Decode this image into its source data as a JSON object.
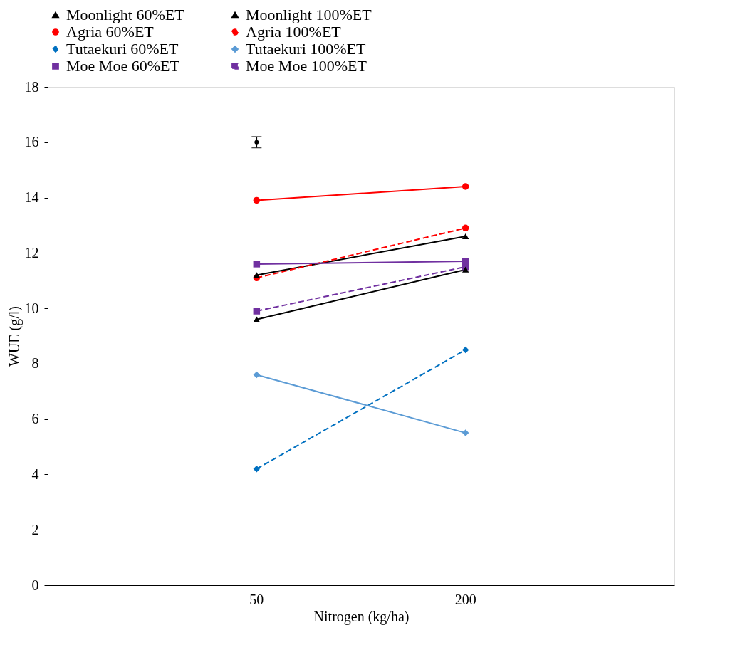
{
  "chart_data": {
    "type": "line",
    "xlabel": "Nitrogen  (kg/ha)",
    "ylabel": "WUE  (g/l)",
    "categories": [
      "50",
      "200"
    ],
    "ylim": [
      0,
      18
    ],
    "yticks": [
      0,
      2,
      4,
      6,
      8,
      10,
      12,
      14,
      16,
      18
    ],
    "grid": false,
    "legend": "top",
    "series": [
      {
        "name": "Moonlight 60%ET",
        "color": "#000000",
        "marker": "triangle",
        "line_style": "solid",
        "values": [
          11.2,
          12.6
        ]
      },
      {
        "name": "Moonlight 100%ET",
        "color": "#000000",
        "marker": "triangle",
        "line_style": "solid",
        "values": [
          9.6,
          11.4
        ]
      },
      {
        "name": "Agria 60%ET",
        "color": "#ff0000",
        "marker": "circle",
        "line_style": "solid",
        "values": [
          13.9,
          14.4
        ]
      },
      {
        "name": "Agria 100%ET",
        "color": "#ff0000",
        "marker": "circle",
        "line_style": "dashed",
        "values": [
          11.1,
          12.9
        ]
      },
      {
        "name": "Tutaekuri 60%ET",
        "color": "#0070c0",
        "marker": "diamond",
        "line_style": "dashed",
        "values": [
          4.2,
          8.5
        ]
      },
      {
        "name": "Tutaekuri 100%ET",
        "color": "#5b9bd5",
        "marker": "diamond",
        "line_style": "solid",
        "values": [
          7.6,
          5.5
        ]
      },
      {
        "name": "Moe Moe 60%ET",
        "color": "#7030a0",
        "marker": "square",
        "line_style": "solid",
        "values": [
          11.6,
          11.7
        ]
      },
      {
        "name": "Moe Moe 100%ET",
        "color": "#7030a0",
        "marker": "square",
        "line_style": "dashed",
        "values": [
          9.9,
          11.5
        ]
      },
      {
        "type": "scatter",
        "color": "#000000",
        "marker": "none",
        "values": [
          16,
          null
        ],
        "errors": [
          0.2,
          null
        ]
      }
    ]
  }
}
